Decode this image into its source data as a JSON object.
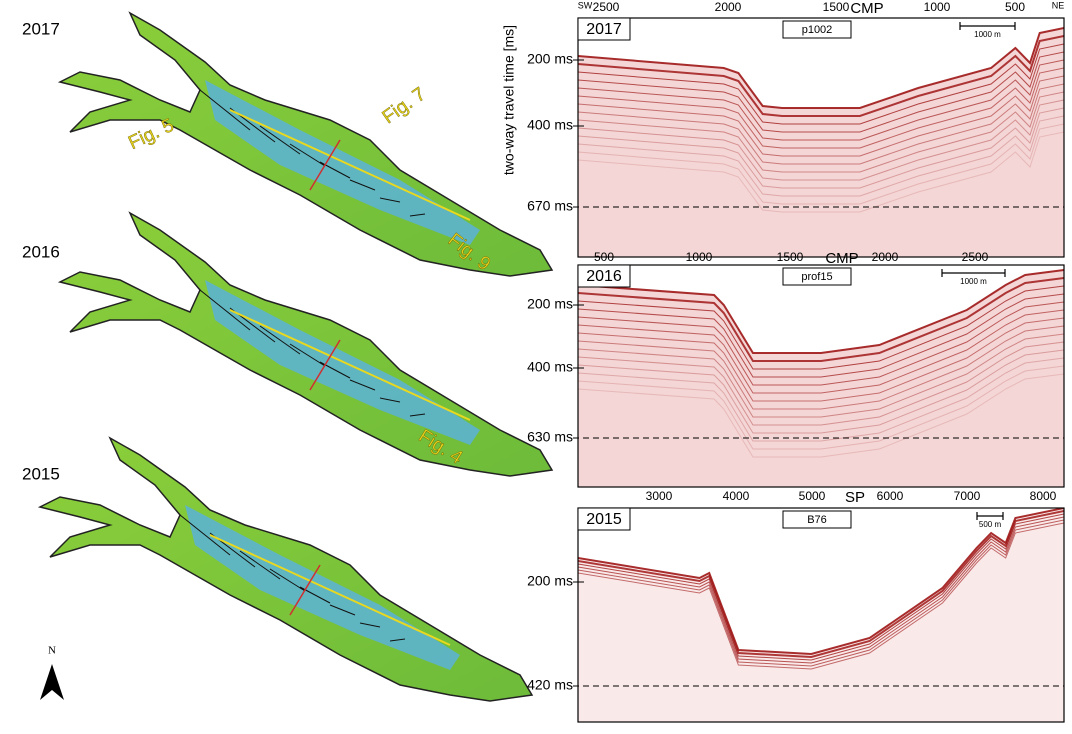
{
  "maps": [
    {
      "year": "2017",
      "labels": [
        "Fig. 5",
        "Fig. 7",
        "Fig. 9"
      ]
    },
    {
      "year": "2016",
      "labels": [
        "Fig. 4"
      ]
    },
    {
      "year": "2015"
    }
  ],
  "north": "N",
  "y_axis_title": "two-way travel time [ms]",
  "profiles": [
    {
      "year": "2017",
      "name": "p1002",
      "axis_title": "CMP",
      "axis_labels": [
        2500,
        2000,
        1500,
        1000,
        500
      ],
      "scale": "1000 m",
      "time_labels": [
        "200 ms",
        "400 ms",
        "670 ms"
      ],
      "left_end": "SW",
      "right_end": "NE"
    },
    {
      "year": "2016",
      "name": "prof15",
      "axis_title": "CMP",
      "axis_labels": [
        500,
        1000,
        1500,
        2000,
        2500
      ],
      "scale": "1000 m",
      "time_labels": [
        "200 ms",
        "400 ms",
        "630 ms"
      ]
    },
    {
      "year": "2015",
      "name": "B76",
      "axis_title": "SP",
      "axis_labels": [
        3000,
        4000,
        5000,
        6000,
        7000,
        8000
      ],
      "scale": "500 m",
      "time_labels": [
        "200 ms",
        "420 ms"
      ]
    }
  ]
}
